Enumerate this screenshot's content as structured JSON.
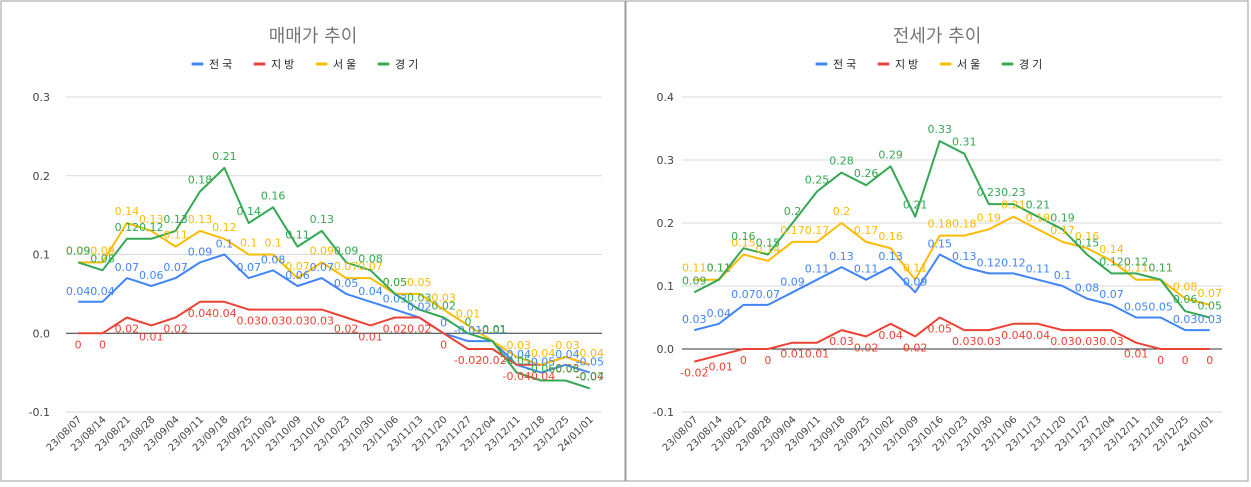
{
  "colors": {
    "national": "#4285F4",
    "regional": "#EA4335",
    "seoul": "#FBBC04",
    "gyeonggi": "#34A853"
  },
  "chart_data": [
    {
      "type": "line",
      "title": "매매가 추이",
      "legend": [
        "전국",
        "지방",
        "서울",
        "경기"
      ],
      "legend_position": "top",
      "ylim": [
        -0.1,
        0.3
      ],
      "yticks": [
        "0.3",
        "0.2",
        "0.1",
        "0.0",
        "-0.1"
      ],
      "ytick_values": [
        0.3,
        0.2,
        0.1,
        0.0,
        -0.1
      ],
      "categories": [
        "23/08/07",
        "23/08/14",
        "23/08/21",
        "23/08/28",
        "23/09/04",
        "23/09/11",
        "23/09/18",
        "23/09/25",
        "23/10/02",
        "23/10/09",
        "23/10/16",
        "23/10/23",
        "23/10/30",
        "23/11/06",
        "23/11/13",
        "23/11/20",
        "23/11/27",
        "23/12/04",
        "23/12/11",
        "23/12/18",
        "23/12/25",
        "24/01/01"
      ],
      "series": [
        {
          "name": "전국",
          "values": [
            0.04,
            0.04,
            0.07,
            0.06,
            0.07,
            0.09,
            0.1,
            0.07,
            0.08,
            0.06,
            0.07,
            0.05,
            0.04,
            0.03,
            0.02,
            0.0,
            -0.01,
            -0.01,
            -0.04,
            -0.05,
            -0.04,
            -0.05
          ]
        },
        {
          "name": "지방",
          "values": [
            0.0,
            0.0,
            0.02,
            0.01,
            0.02,
            0.04,
            0.04,
            0.03,
            0.03,
            0.03,
            0.03,
            0.02,
            0.01,
            0.02,
            0.02,
            0.0,
            -0.02,
            -0.02,
            -0.04,
            -0.04,
            -0.03,
            -0.04
          ]
        },
        {
          "name": "서울",
          "values": [
            0.09,
            0.09,
            0.14,
            0.13,
            0.11,
            0.13,
            0.12,
            0.1,
            0.1,
            0.07,
            0.09,
            0.07,
            0.07,
            0.05,
            0.05,
            0.03,
            0.01,
            -0.01,
            -0.03,
            -0.04,
            -0.03,
            -0.04
          ]
        },
        {
          "name": "경기",
          "values": [
            0.09,
            0.08,
            0.12,
            0.12,
            0.13,
            0.18,
            0.21,
            0.14,
            0.16,
            0.11,
            0.13,
            0.09,
            0.08,
            0.05,
            0.03,
            0.02,
            0.0,
            -0.01,
            -0.05,
            -0.06,
            -0.06,
            -0.07
          ]
        }
      ],
      "label_texts": [
        [
          "0.04",
          "0.04",
          "0.07",
          "0.06",
          "0.07",
          "0.09",
          "0.1",
          "0.07",
          "0.08",
          "0.06",
          "0.07",
          "0.05",
          "0.04",
          "0.03",
          "0.02",
          "0",
          "-0.01",
          "-0.01",
          "-0.04",
          "-0.05",
          "-0.04",
          "-0.05"
        ],
        [
          "0",
          "0",
          "0.02",
          "0.01",
          "0.02",
          "0.04",
          "0.04",
          "0.03",
          "0.03",
          "0.03",
          "0.03",
          "0.02",
          "0.01",
          "0.02",
          "0.02",
          "0",
          "-0.02",
          "-0.02",
          "-0.04",
          "-0.04",
          "-0.03",
          "-0.04"
        ],
        [
          "0.09",
          "0.09",
          "0.14",
          "0.13",
          "0.11",
          "0.13",
          "0.12",
          "0.1",
          "0.1",
          "0.07",
          "0.09",
          "0.07",
          "0.07",
          "0.05",
          "0.05",
          "0.03",
          "0.01",
          "-0.01",
          "-0.03",
          "-0.04",
          "-0.03",
          "-0.04"
        ],
        [
          "0.09",
          "0.08",
          "0.12",
          "0.12",
          "0.13",
          "0.18",
          "0.21",
          "0.14",
          "0.16",
          "0.11",
          "0.13",
          "0.09",
          "0.08",
          "0.05",
          "0.03",
          "0.02",
          "0",
          "-0.01",
          "-0.05",
          "-0.06",
          "-0.06",
          "-0.07"
        ]
      ]
    },
    {
      "type": "line",
      "title": "전세가 추이",
      "legend": [
        "전국",
        "지방",
        "서울",
        "경기"
      ],
      "legend_position": "top",
      "ylim": [
        -0.1,
        0.4
      ],
      "yticks": [
        "0.4",
        "0.3",
        "0.2",
        "0.1",
        "0.0",
        "-0.1"
      ],
      "ytick_values": [
        0.4,
        0.3,
        0.2,
        0.1,
        0.0,
        -0.1
      ],
      "categories": [
        "23/08/07",
        "23/08/14",
        "23/08/21",
        "23/08/28",
        "23/09/04",
        "23/09/11",
        "23/09/18",
        "23/09/25",
        "23/10/02",
        "23/10/09",
        "23/10/16",
        "23/10/23",
        "23/10/30",
        "23/11/06",
        "23/11/13",
        "23/11/20",
        "23/11/27",
        "23/12/04",
        "23/12/11",
        "23/12/18",
        "23/12/25",
        "24/01/01"
      ],
      "series": [
        {
          "name": "전국",
          "values": [
            0.03,
            0.04,
            0.07,
            0.07,
            0.09,
            0.11,
            0.13,
            0.11,
            0.13,
            0.09,
            0.15,
            0.13,
            0.12,
            0.12,
            0.11,
            0.1,
            0.08,
            0.07,
            0.05,
            0.05,
            0.03,
            0.03
          ]
        },
        {
          "name": "지방",
          "values": [
            -0.02,
            -0.01,
            0.0,
            0.0,
            0.01,
            0.01,
            0.03,
            0.02,
            0.04,
            0.02,
            0.05,
            0.03,
            0.03,
            0.04,
            0.04,
            0.03,
            0.03,
            0.03,
            0.01,
            0.0,
            0.0,
            0.0
          ]
        },
        {
          "name": "서울",
          "values": [
            0.11,
            0.11,
            0.15,
            0.14,
            0.17,
            0.17,
            0.2,
            0.17,
            0.16,
            0.11,
            0.18,
            0.18,
            0.19,
            0.21,
            0.19,
            0.17,
            0.16,
            0.14,
            0.11,
            0.11,
            0.08,
            0.07
          ]
        },
        {
          "name": "경기",
          "values": [
            0.09,
            0.11,
            0.16,
            0.15,
            0.2,
            0.25,
            0.28,
            0.26,
            0.29,
            0.21,
            0.33,
            0.31,
            0.23,
            0.23,
            0.21,
            0.19,
            0.15,
            0.12,
            0.12,
            0.11,
            0.06,
            0.05
          ]
        }
      ],
      "label_texts": [
        [
          "0.03",
          "0.04",
          "0.07",
          "0.07",
          "0.09",
          "0.11",
          "0.13",
          "0.11",
          "0.13",
          "0.09",
          "0.15",
          "0.13",
          "0.12",
          "0.12",
          "0.11",
          "0.1",
          "0.08",
          "0.07",
          "0.05",
          "0.05",
          "0.03",
          "0.03"
        ],
        [
          "-0.02",
          "-0.01",
          "0",
          "0",
          "0.01",
          "0.01",
          "0.03",
          "0.02",
          "0.04",
          "0.02",
          "0.05",
          "0.03",
          "0.03",
          "0.04",
          "0.04",
          "0.03",
          "0.03",
          "0.03",
          "0.01",
          "0",
          "0",
          "0"
        ],
        [
          "0.11",
          "0.11",
          "0.15",
          "0.14",
          "0.17",
          "0.17",
          "0.2",
          "0.17",
          "0.16",
          "0.11",
          "0.18",
          "0.18",
          "0.19",
          "0.21",
          "0.19",
          "0.17",
          "0.16",
          "0.14",
          "0.11",
          "0.11",
          "0.08",
          "0.07"
        ],
        [
          "0.09",
          "0.11",
          "0.16",
          "0.15",
          "0.2",
          "0.25",
          "0.28",
          "0.26",
          "0.29",
          "0.21",
          "0.33",
          "0.31",
          "0.23",
          "0.23",
          "0.21",
          "0.19",
          "0.15",
          "0.12",
          "0.12",
          "0.11",
          "0.06",
          "0.05"
        ]
      ]
    }
  ]
}
